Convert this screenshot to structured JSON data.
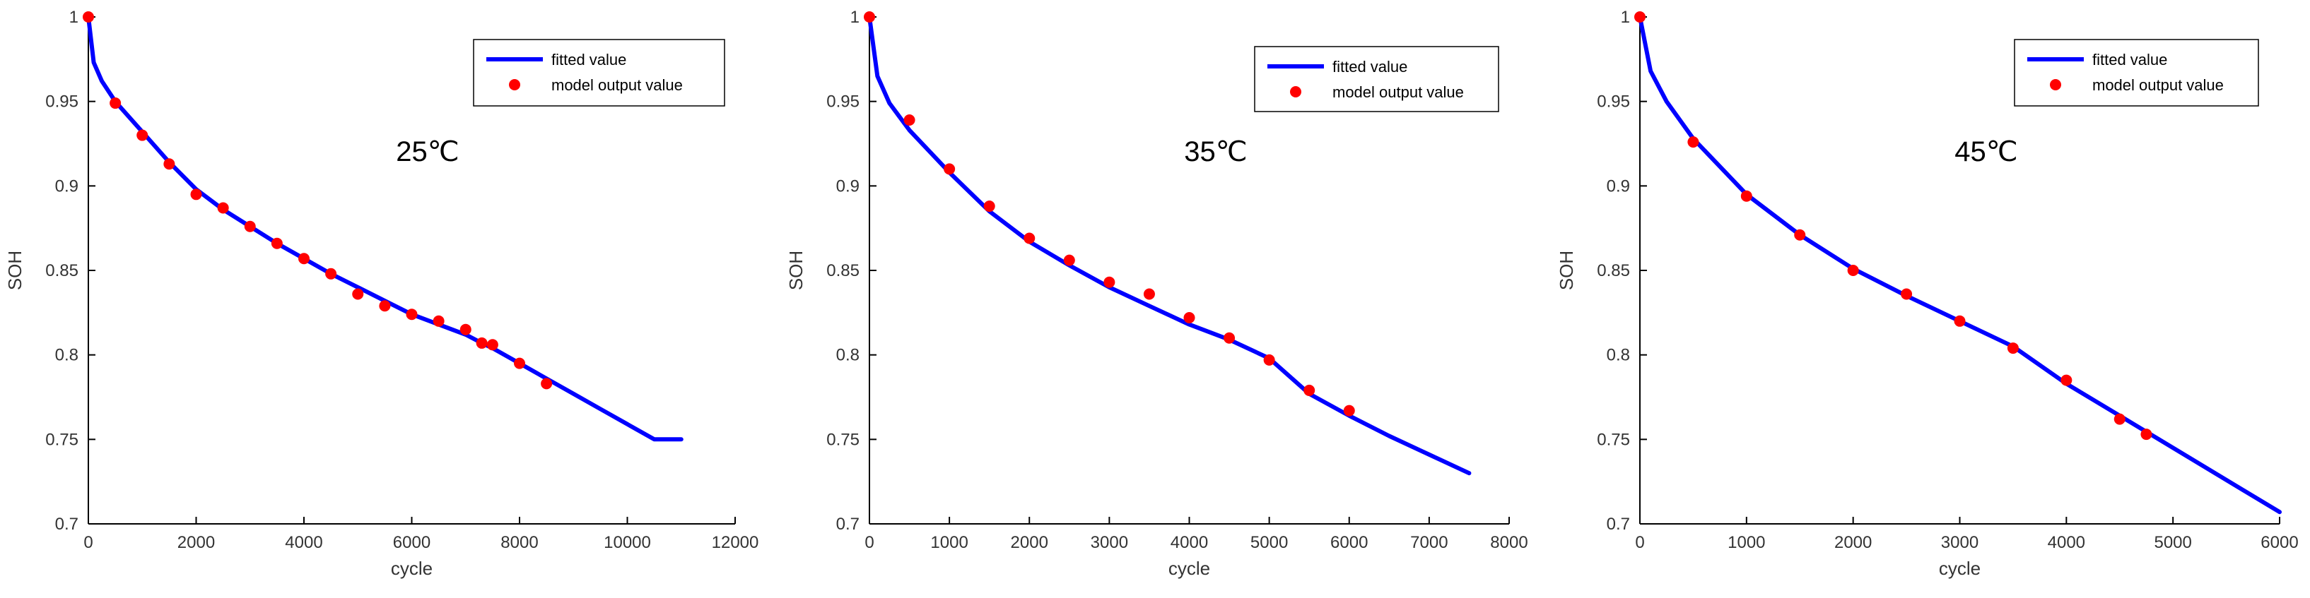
{
  "chart_data": [
    {
      "type": "line",
      "title": "",
      "annotation": "25℃",
      "xlabel": "cycle",
      "ylabel": "SOH",
      "xlim": [
        0,
        12000
      ],
      "ylim": [
        0.7,
        1.0
      ],
      "xticks": [
        "0",
        "2000",
        "4000",
        "6000",
        "8000",
        "10000",
        "12000"
      ],
      "yticks": [
        "0.7",
        "0.75",
        "0.8",
        "0.85",
        "0.9",
        "0.95",
        "1"
      ],
      "legend_position": "top-right",
      "series": [
        {
          "name": "fitted value",
          "kind": "line",
          "color": "#0000ff",
          "x": [
            0,
            100,
            250,
            500,
            1000,
            1500,
            2000,
            2500,
            3000,
            3500,
            4000,
            4500,
            5000,
            5500,
            6000,
            6500,
            7000,
            7300,
            7500,
            8000,
            8500,
            9000,
            9500,
            10000,
            10500,
            11000
          ],
          "y": [
            1.0,
            0.973,
            0.962,
            0.95,
            0.932,
            0.914,
            0.898,
            0.886,
            0.876,
            0.866,
            0.857,
            0.848,
            0.84,
            0.832,
            0.824,
            0.818,
            0.812,
            0.807,
            0.804,
            0.795,
            0.786,
            0.777,
            0.768,
            0.759,
            0.75,
            0.75
          ]
        },
        {
          "name": "model output value",
          "kind": "scatter",
          "color": "#ff0000",
          "x": [
            0,
            500,
            1000,
            1500,
            2000,
            2500,
            3000,
            3500,
            4000,
            4500,
            5000,
            5500,
            6000,
            6500,
            7000,
            7300,
            7500,
            8000,
            8500
          ],
          "y": [
            1.0,
            0.949,
            0.93,
            0.913,
            0.895,
            0.887,
            0.876,
            0.866,
            0.857,
            0.848,
            0.836,
            0.829,
            0.824,
            0.82,
            0.815,
            0.807,
            0.806,
            0.795,
            0.783
          ]
        }
      ]
    },
    {
      "type": "line",
      "title": "",
      "annotation": "35℃",
      "xlabel": "cycle",
      "ylabel": "SOH",
      "xlim": [
        0,
        8000
      ],
      "ylim": [
        0.7,
        1.0
      ],
      "xticks": [
        "0",
        "1000",
        "2000",
        "3000",
        "4000",
        "5000",
        "6000",
        "7000",
        "8000"
      ],
      "yticks": [
        "0.7",
        "0.75",
        "0.8",
        "0.85",
        "0.9",
        "0.95",
        "1"
      ],
      "legend_position": "top-right",
      "series": [
        {
          "name": "fitted value",
          "kind": "line",
          "color": "#0000ff",
          "x": [
            0,
            100,
            250,
            500,
            1000,
            1500,
            2000,
            2500,
            3000,
            3500,
            4000,
            4500,
            5000,
            5500,
            6000,
            6500,
            7000,
            7500
          ],
          "y": [
            1.0,
            0.965,
            0.949,
            0.933,
            0.908,
            0.885,
            0.867,
            0.853,
            0.84,
            0.829,
            0.818,
            0.809,
            0.798,
            0.777,
            0.764,
            0.752,
            0.741,
            0.73
          ]
        },
        {
          "name": "model output value",
          "kind": "scatter",
          "color": "#ff0000",
          "x": [
            0,
            500,
            1000,
            1500,
            2000,
            2500,
            3000,
            3500,
            4000,
            4500,
            5000,
            5500,
            6000
          ],
          "y": [
            1.0,
            0.939,
            0.91,
            0.888,
            0.869,
            0.856,
            0.843,
            0.836,
            0.822,
            0.81,
            0.797,
            0.779,
            0.767
          ]
        }
      ]
    },
    {
      "type": "line",
      "title": "",
      "annotation": "45℃",
      "xlabel": "cycle",
      "ylabel": "SOH",
      "xlim": [
        0,
        6000
      ],
      "ylim": [
        0.7,
        1.0
      ],
      "xticks": [
        "0",
        "1000",
        "2000",
        "3000",
        "4000",
        "5000",
        "6000"
      ],
      "yticks": [
        "0.7",
        "0.75",
        "0.8",
        "0.85",
        "0.9",
        "0.95",
        "1"
      ],
      "legend_position": "top-right",
      "series": [
        {
          "name": "fitted value",
          "kind": "line",
          "color": "#0000ff",
          "x": [
            0,
            100,
            250,
            500,
            1000,
            1500,
            2000,
            2500,
            3000,
            3500,
            4000,
            4500,
            5000,
            5500,
            6000
          ],
          "y": [
            1.0,
            0.968,
            0.95,
            0.928,
            0.895,
            0.871,
            0.851,
            0.835,
            0.82,
            0.805,
            0.783,
            0.764,
            0.745,
            0.726,
            0.707
          ]
        },
        {
          "name": "model output value",
          "kind": "scatter",
          "color": "#ff0000",
          "x": [
            0,
            500,
            1000,
            1500,
            2000,
            2500,
            3000,
            3500,
            4000,
            4500,
            4750
          ],
          "y": [
            1.0,
            0.926,
            0.894,
            0.871,
            0.85,
            0.836,
            0.82,
            0.804,
            0.785,
            0.762,
            0.753
          ]
        }
      ]
    }
  ]
}
